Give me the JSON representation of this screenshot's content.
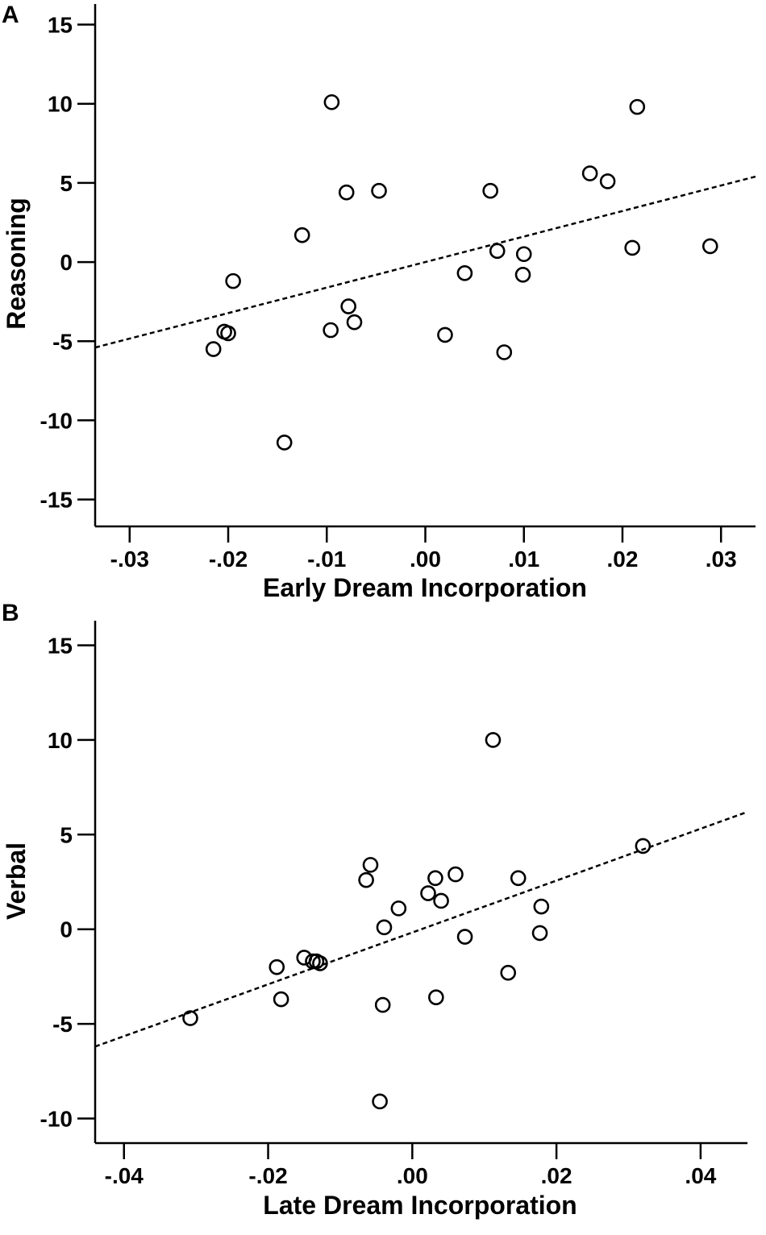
{
  "chart_data": [
    {
      "type": "scatter",
      "panel_label": "A",
      "xlabel": "Early Dream Incorporation",
      "ylabel": "Reasoning",
      "xlim": [
        -0.0335,
        0.0335
      ],
      "ylim": [
        -16.7,
        16.3
      ],
      "x_ticks": [
        -0.03,
        -0.02,
        -0.01,
        0.0,
        0.01,
        0.02,
        0.03
      ],
      "x_tick_labels": [
        "-.03",
        "-.02",
        "-.01",
        ".00",
        ".01",
        ".02",
        ".03"
      ],
      "y_ticks": [
        -15,
        -10,
        -5,
        0,
        5,
        10,
        15
      ],
      "y_tick_labels": [
        "-15",
        "-10",
        "-5",
        "0",
        "5",
        "10",
        "15"
      ],
      "points": [
        {
          "x": -0.0215,
          "y": -5.5
        },
        {
          "x": -0.0204,
          "y": -4.4
        },
        {
          "x": -0.02,
          "y": -4.5
        },
        {
          "x": -0.0195,
          "y": -1.2
        },
        {
          "x": -0.0143,
          "y": -11.4
        },
        {
          "x": -0.0125,
          "y": 1.7
        },
        {
          "x": -0.0095,
          "y": 10.1
        },
        {
          "x": -0.0096,
          "y": -4.3
        },
        {
          "x": -0.008,
          "y": 4.4
        },
        {
          "x": -0.0078,
          "y": -2.8
        },
        {
          "x": -0.0072,
          "y": -3.8
        },
        {
          "x": -0.0047,
          "y": 4.5
        },
        {
          "x": 0.002,
          "y": -4.6
        },
        {
          "x": 0.004,
          "y": -0.7
        },
        {
          "x": 0.0066,
          "y": 4.5
        },
        {
          "x": 0.0073,
          "y": 0.7
        },
        {
          "x": 0.008,
          "y": -5.7
        },
        {
          "x": 0.0099,
          "y": -0.8
        },
        {
          "x": 0.01,
          "y": 0.5
        },
        {
          "x": 0.0167,
          "y": 5.6
        },
        {
          "x": 0.0185,
          "y": 5.1
        },
        {
          "x": 0.021,
          "y": 0.9
        },
        {
          "x": 0.0215,
          "y": 9.8
        },
        {
          "x": 0.0289,
          "y": 1.0
        }
      ],
      "fit_line": {
        "x": [
          -0.0335,
          0.0335
        ],
        "y": [
          -5.4,
          5.4
        ],
        "style": "dashed"
      }
    },
    {
      "type": "scatter",
      "panel_label": "B",
      "xlabel": "Late Dream Incorporation",
      "ylabel": "Verbal",
      "xlim": [
        -0.044,
        0.0465
      ],
      "ylim": [
        -11.3,
        16.3
      ],
      "x_ticks": [
        -0.04,
        -0.02,
        0.0,
        0.02,
        0.04
      ],
      "x_tick_labels": [
        "-.04",
        "-.02",
        ".00",
        ".02",
        ".04"
      ],
      "y_ticks": [
        -10,
        -5,
        0,
        5,
        10,
        15
      ],
      "y_tick_labels": [
        "-10",
        "-5",
        "0",
        "5",
        "10",
        "15"
      ],
      "points": [
        {
          "x": -0.0308,
          "y": -4.7
        },
        {
          "x": -0.0188,
          "y": -2.0
        },
        {
          "x": -0.0182,
          "y": -3.7
        },
        {
          "x": -0.015,
          "y": -1.5
        },
        {
          "x": -0.0138,
          "y": -1.7
        },
        {
          "x": -0.0133,
          "y": -1.7
        },
        {
          "x": -0.0128,
          "y": -1.8
        },
        {
          "x": -0.0064,
          "y": 2.6
        },
        {
          "x": -0.0058,
          "y": 3.4
        },
        {
          "x": -0.0045,
          "y": -9.1
        },
        {
          "x": -0.0041,
          "y": -4.0
        },
        {
          "x": -0.0039,
          "y": 0.1
        },
        {
          "x": -0.0019,
          "y": 1.1
        },
        {
          "x": 0.0022,
          "y": 1.9
        },
        {
          "x": 0.0032,
          "y": 2.7
        },
        {
          "x": 0.0033,
          "y": -3.6
        },
        {
          "x": 0.004,
          "y": 1.5
        },
        {
          "x": 0.006,
          "y": 2.9
        },
        {
          "x": 0.0073,
          "y": -0.4
        },
        {
          "x": 0.0112,
          "y": 10.0
        },
        {
          "x": 0.0133,
          "y": -2.3
        },
        {
          "x": 0.0147,
          "y": 2.7
        },
        {
          "x": 0.0177,
          "y": -0.2
        },
        {
          "x": 0.0179,
          "y": 1.2
        },
        {
          "x": 0.032,
          "y": 4.4
        }
      ],
      "fit_line": {
        "x": [
          -0.044,
          0.0465
        ],
        "y": [
          -6.2,
          6.2
        ],
        "style": "dashed"
      }
    }
  ]
}
